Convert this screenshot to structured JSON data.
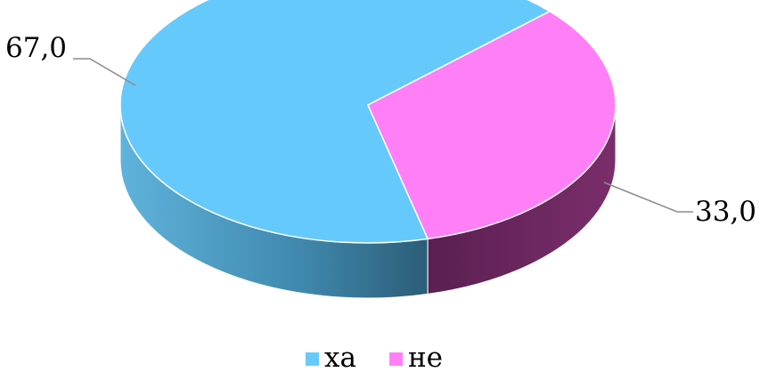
{
  "chart_data": {
    "type": "pie",
    "variant": "3d",
    "title": "",
    "slices": [
      {
        "name": "ха",
        "value": 67.0,
        "label": "67,0",
        "color": "#66c9fb",
        "side_color": "#4aa5cf"
      },
      {
        "name": "не",
        "value": 33.0,
        "label": "33,0",
        "color": "#ff7ff6",
        "side_color": "#6f2a63"
      }
    ],
    "legend": {
      "placement": "bottom",
      "entries": [
        "ха",
        "не"
      ]
    }
  }
}
